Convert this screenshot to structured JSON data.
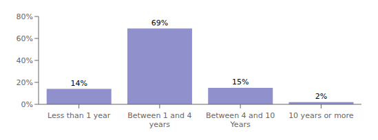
{
  "chart_data": {
    "type": "bar",
    "categories": [
      "Less than 1 year",
      "Between 1 and 4\nyears",
      "Between 4 and 10\nYears",
      "10 years or more"
    ],
    "values": [
      14,
      69,
      15,
      2
    ],
    "value_labels": [
      "14%",
      "69%",
      "15%",
      "2%"
    ],
    "data_labels": true,
    "color": "#9090cc",
    "ylim": [
      0,
      80
    ],
    "yticks": [
      {
        "value": 0,
        "label": "0%"
      },
      {
        "value": 20,
        "label": "20%"
      },
      {
        "value": 40,
        "label": "40%"
      },
      {
        "value": 60,
        "label": "60%"
      },
      {
        "value": 80,
        "label": "80%"
      }
    ],
    "grid": false
  }
}
